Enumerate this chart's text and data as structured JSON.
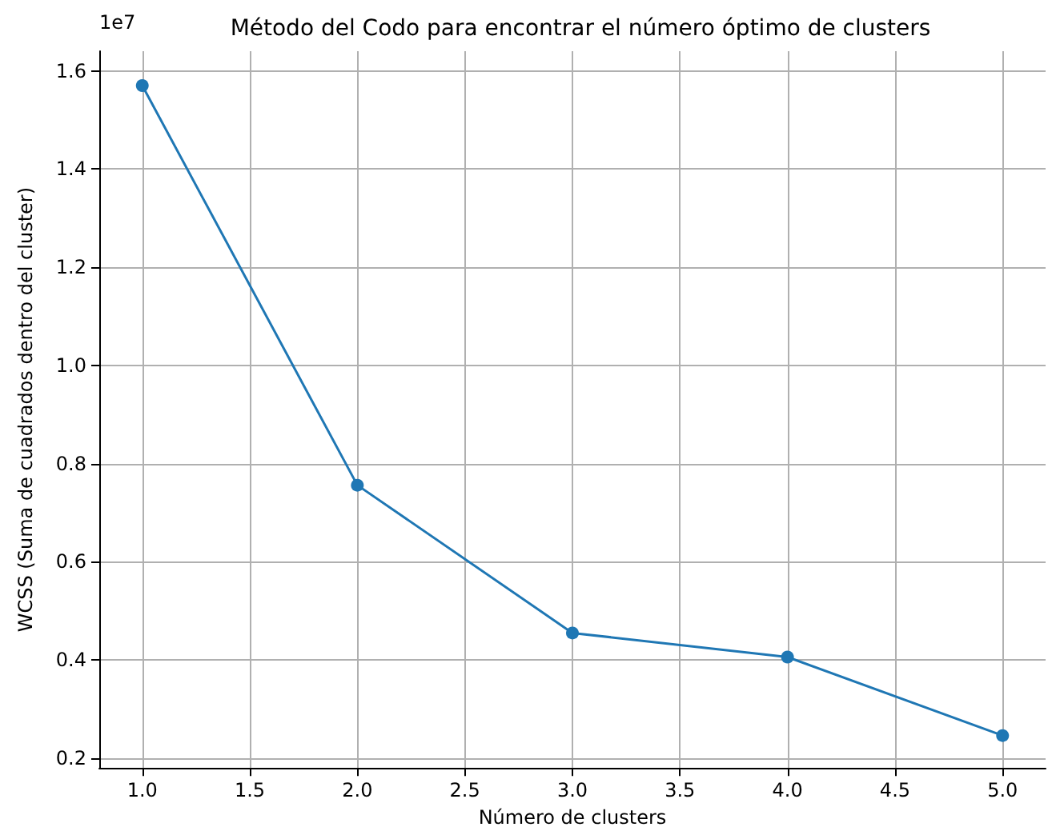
{
  "chart_data": {
    "type": "line",
    "title": "Método del Codo para encontrar el número óptimo de clusters",
    "xlabel": "Número de clusters",
    "ylabel": "WCSS (Suma de cuadrados dentro del cluster)",
    "annotations": [
      "1e7"
    ],
    "x": [
      1,
      2,
      3,
      4,
      5
    ],
    "series": [
      {
        "color": "#1f77b4",
        "values": [
          1.57,
          0.756,
          0.455,
          0.406,
          0.246
        ]
      }
    ],
    "xlim": [
      0.8,
      5.2
    ],
    "xticks": [
      {
        "value": 1,
        "label": "1.0"
      },
      {
        "value": 1.5,
        "label": "1.5"
      },
      {
        "value": 2,
        "label": "2.0"
      },
      {
        "value": 2.5,
        "label": "2.5"
      },
      {
        "value": 3,
        "label": "3.0"
      },
      {
        "value": 3.5,
        "label": "3.5"
      },
      {
        "value": 4,
        "label": "4.0"
      },
      {
        "value": 4.5,
        "label": "4.5"
      },
      {
        "value": 5,
        "label": "5.0"
      }
    ],
    "ylim": [
      0.18,
      1.64
    ],
    "yticks": [
      0.2,
      0.4,
      0.6,
      0.8,
      {
        "value": 1,
        "label": "1.0"
      },
      1.2,
      1.4,
      1.6
    ],
    "grid": true,
    "marker": "circle",
    "line_style": "solid"
  }
}
